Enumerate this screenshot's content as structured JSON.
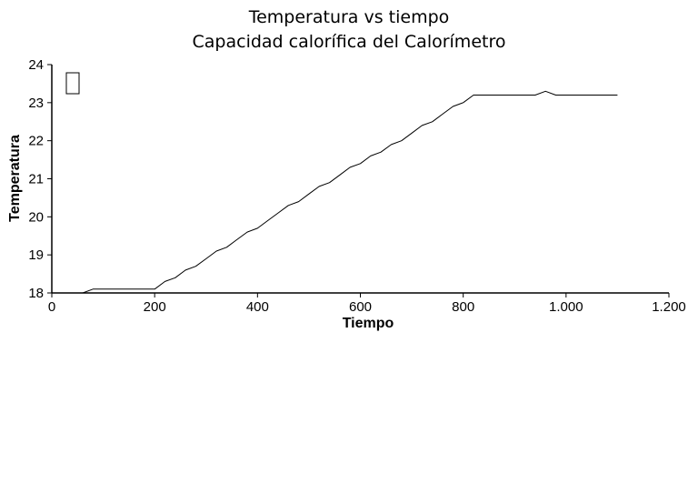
{
  "chart_data": {
    "type": "line",
    "title": "Temperatura vs tiempo",
    "subtitle": "Capacidad calorífica del Calorímetro",
    "xlabel": "Tiempo",
    "ylabel": "Temperatura",
    "xlim": [
      0,
      1200
    ],
    "ylim": [
      18,
      24
    ],
    "x_ticks": [
      "0",
      "200",
      "400",
      "600",
      "800",
      "1.000",
      "1.200"
    ],
    "y_ticks": [
      "18",
      "19",
      "20",
      "21",
      "22",
      "23",
      "24"
    ],
    "grid": false,
    "legend": {
      "placement": "top-left",
      "entries": [
        ""
      ]
    },
    "series": [
      {
        "x": [
          0,
          60,
          80,
          100,
          200,
          220,
          240,
          260,
          280,
          300,
          320,
          340,
          360,
          380,
          400,
          420,
          440,
          460,
          480,
          500,
          520,
          540,
          560,
          580,
          600,
          620,
          640,
          660,
          680,
          700,
          720,
          740,
          760,
          780,
          800,
          820,
          940,
          960,
          980,
          1100
        ],
        "values": [
          18.0,
          18.0,
          18.1,
          18.1,
          18.1,
          18.3,
          18.4,
          18.6,
          18.7,
          18.9,
          19.1,
          19.2,
          19.4,
          19.6,
          19.7,
          19.9,
          20.1,
          20.3,
          20.4,
          20.6,
          20.8,
          20.9,
          21.1,
          21.3,
          21.4,
          21.6,
          21.7,
          21.9,
          22.0,
          22.2,
          22.4,
          22.5,
          22.7,
          22.9,
          23.0,
          23.2,
          23.2,
          23.3,
          23.2,
          23.2
        ]
      }
    ],
    "line_color": "#000000"
  }
}
